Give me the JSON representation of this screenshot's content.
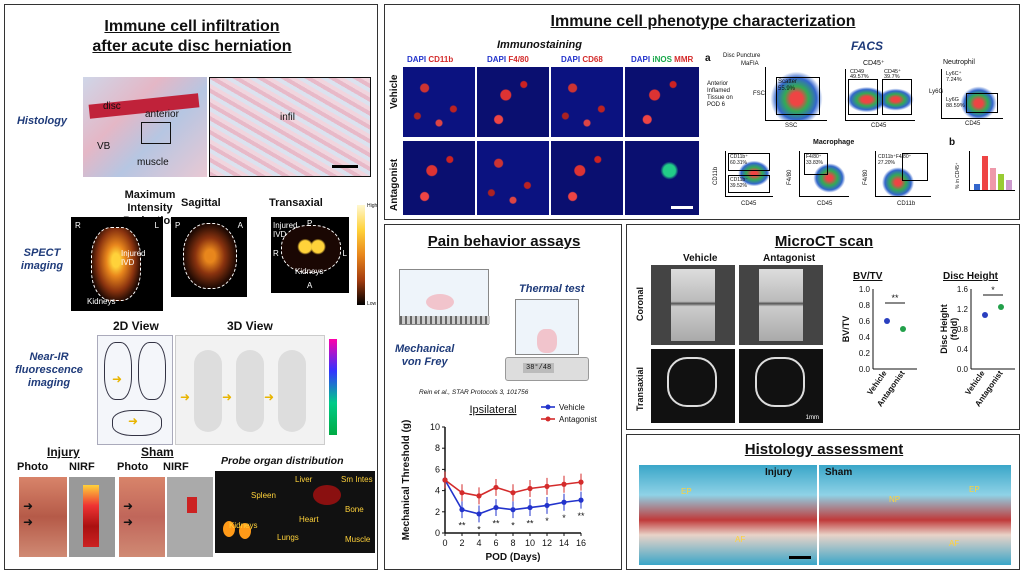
{
  "p1": {
    "title1": "Immune cell infiltration",
    "title2": "after acute disc herniation",
    "histology": "Histology",
    "disc": "disc",
    "anterior": "anterior",
    "vb": "VB",
    "muscle": "muscle",
    "infil": "infil",
    "mip1": "Maximum Intensity",
    "mip2": "Projection",
    "sagittal": "Sagittal",
    "transaxial": "Transaxial",
    "spect1": "SPECT",
    "spect2": "imaging",
    "r": "R",
    "l": "L",
    "p": "P",
    "a": "A",
    "injured1": "Injured",
    "injured2": "IVD",
    "kidneys": "Kidneys",
    "high": "High",
    "low": "Low",
    "view2d": "2D View",
    "view3d": "3D View",
    "nir1": "Near-IR",
    "nir2": "fluorescence",
    "nir3": "imaging",
    "injury": "Injury",
    "sham": "Sham",
    "photo": "Photo",
    "nirf": "NIRF",
    "probe": "Probe organ distribution",
    "organs": {
      "liver": "Liver",
      "smint1": "Sm Intes",
      "spleen": "Spleen",
      "heart": "Heart",
      "bone": "Bone",
      "kid": "Kidneys",
      "lungs": "Lungs",
      "muscle": "Muscle"
    }
  },
  "p2": {
    "title": "Immune cell phenotype characterization",
    "immuno": "Immunostaining",
    "facs": "FACS",
    "cols": [
      {
        "a": "DAPI",
        "b": "CD11b"
      },
      {
        "a": "DAPI",
        "b": "F4/80"
      },
      {
        "a": "DAPI",
        "b": "CD68"
      },
      {
        "a": "DAPI",
        "b": "iNOS",
        "c": "MMR"
      }
    ],
    "vehicle": "Vehicle",
    "antagonist": "Antagonist",
    "fa": "a",
    "fb": "b",
    "discp": "Disc Puncture",
    "mafia": "MaFIA",
    "ant1": "Anterior",
    "ant2": "Inflamed",
    "ant3": "Tissue on",
    "ant4": "POD 6",
    "fsc": "FSC",
    "ssc": "SSC",
    "scatter": "Scatter",
    "scpct": "55.9%",
    "cd45p": "CD45⁺",
    "cd45": "CD45",
    "cd49": "CD49",
    "p4957": "49.57%",
    "cd45p2": "CD45⁺",
    "p3977": "39.7%",
    "neut": "Neutrophil",
    "ly6c": "Ly6C⁺",
    "p724": "7.24%",
    "ly6g": "Ly6G",
    "ly6gn": "Ly6G",
    "p8859": "88.59%",
    "mac": "Macrophage",
    "cd11bp": "CD11b⁺",
    "p6031": "60.31%",
    "cd11b": "CD11b",
    "cd11bn": "CD11b⁻",
    "p3652": "39.52%",
    "f480p": "F4/80⁺",
    "p3383": "33.83%",
    "f480": "F4/80",
    "cdf": "CD11b⁺F4/80⁺",
    "p2720": "27.20%",
    "pctlabel": "% in CD45⁺"
  },
  "p3": {
    "title": "Pain behavior assays",
    "thermal": "Thermal test",
    "mech1": "Mechanical",
    "mech2": "von Frey",
    "display": "38°/48",
    "cite": "Rein et al., STAR Protocols 3, 101756"
  },
  "chart_data": {
    "type": "line",
    "title": "Ipsilateral",
    "xlabel": "POD (Days)",
    "ylabel": "Mechanical Threshold (g)",
    "x": [
      0,
      2,
      4,
      6,
      8,
      10,
      12,
      14,
      16
    ],
    "ylim": [
      0,
      10
    ],
    "xlim": [
      0,
      16
    ],
    "series": [
      {
        "name": "Vehicle",
        "color": "#2233cc",
        "values": [
          5,
          2.2,
          1.8,
          2.4,
          2.2,
          2.4,
          2.6,
          2.9,
          3.1
        ]
      },
      {
        "name": "Antagonist",
        "color": "#d42b2b",
        "values": [
          5,
          3.8,
          3.5,
          4.3,
          3.8,
          4.2,
          4.4,
          4.6,
          4.8
        ]
      }
    ],
    "stars": [
      "**",
      "*",
      "**",
      "*",
      "**",
      "*",
      "*",
      "**"
    ],
    "yticks": [
      0,
      2,
      4,
      6,
      8,
      10
    ],
    "xticks": [
      0,
      2,
      4,
      6,
      8,
      10,
      12,
      14,
      16
    ]
  },
  "p4": {
    "title": "MicroCT scan",
    "vehicle": "Vehicle",
    "antagonist": "Antagonist",
    "coronal": "Coronal",
    "transaxial": "Transaxial",
    "scale": "1mm",
    "bvtv_title": "BV/TV",
    "bvtv_y": "BV/TV",
    "dh_title": "Disc Height",
    "dh_y1": "Disc Height",
    "dh_y2": "(fold)",
    "bvticks": [
      "1.0",
      "0.8",
      "0.6",
      "0.4",
      "0.2",
      "0.0"
    ],
    "dhticks": [
      "1.6",
      "1.2",
      "0.8",
      "0.4",
      "0.0"
    ],
    "sig1": "**",
    "sig2": "*",
    "xv": "Vehicle",
    "xa": "Antagonist"
  },
  "p5": {
    "title": "Histology assessment",
    "injury": "Injury",
    "sham": "Sham",
    "ep": "EP",
    "np": "NP",
    "af": "AF"
  }
}
